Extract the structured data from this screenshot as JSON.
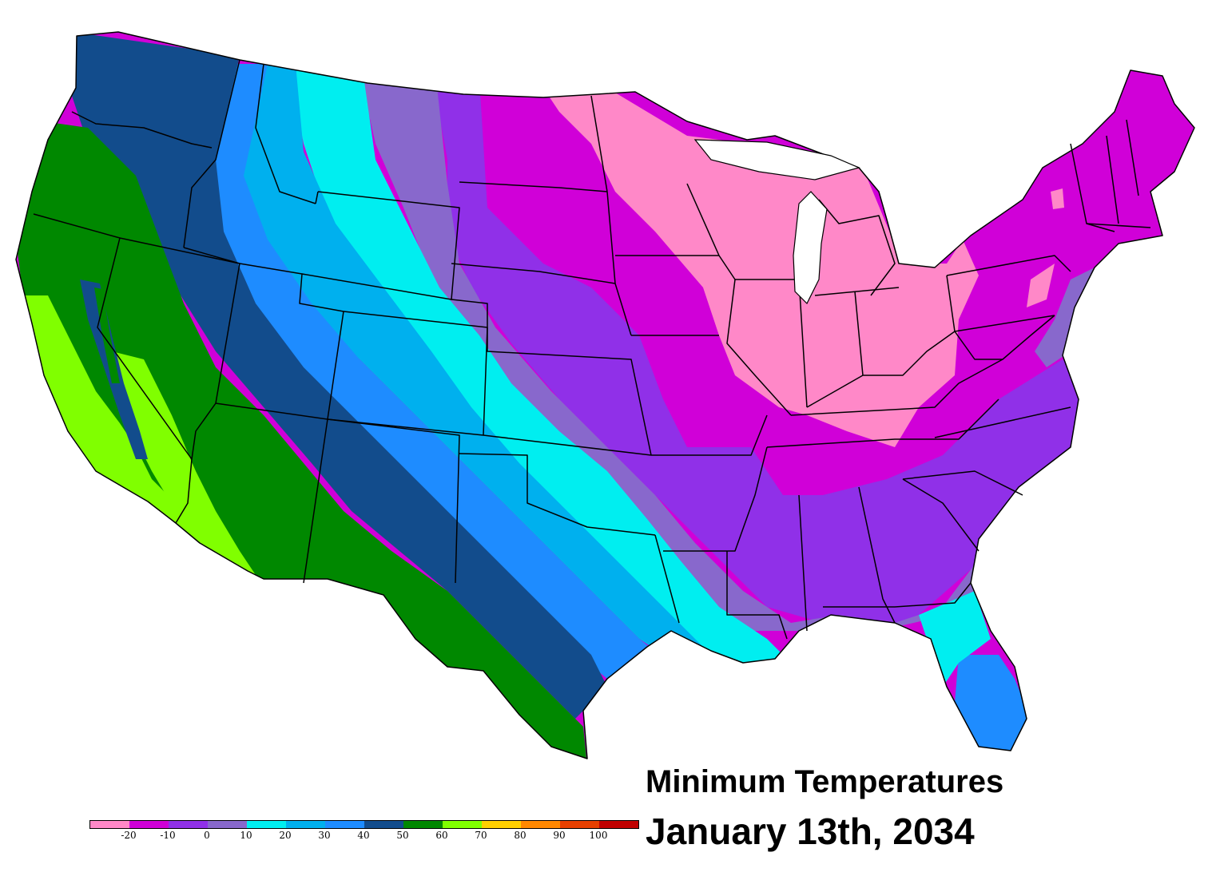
{
  "map": {
    "title": "Minimum Temperatures",
    "date": "January 13th, 2034",
    "region": "Contiguous United States"
  },
  "legend": {
    "colors": [
      "#ff88c8",
      "#d000d8",
      "#9030e8",
      "#8868cc",
      "#00eef0",
      "#00b0ee",
      "#1e8cff",
      "#124c8c",
      "#008800",
      "#80ff00",
      "#ffd000",
      "#ff8800",
      "#e84000",
      "#c00000"
    ],
    "bins": [
      "<-20",
      "-20 to -10",
      "-10 to 0",
      "0 to 10",
      "10 to 20",
      "20 to 30",
      "30 to 40",
      "40 to 50",
      "50 to 60",
      "60 to 70",
      "70 to 80",
      "80 to 90",
      "90 to 100",
      ">100"
    ],
    "labels": [
      "-20",
      "-10",
      "0",
      "10",
      "20",
      "30",
      "40",
      "50",
      "60",
      "70",
      "80",
      "90",
      "100"
    ]
  },
  "bands": [
    {
      "name": "west-coast-california",
      "color": "#80ff00",
      "range": "60 to 70"
    },
    {
      "name": "pacific-interior",
      "color": "#008800",
      "range": "50 to 60"
    },
    {
      "name": "northwest-rockies",
      "color": "#124c8c",
      "range": "40 to 50"
    },
    {
      "name": "front-range",
      "color": "#1e8cff",
      "range": "30 to 40"
    },
    {
      "name": "high-plains",
      "color": "#00b0ee",
      "range": "20 to 30"
    },
    {
      "name": "central-plains",
      "color": "#00eef0",
      "range": "10 to 20"
    },
    {
      "name": "northern-plains-south",
      "color": "#8868cc",
      "range": "0 to 10"
    },
    {
      "name": "dakotas-southeast",
      "color": "#9030e8",
      "range": "-10 to 0"
    },
    {
      "name": "upper-midwest-east",
      "color": "#d000d8",
      "range": "-20 to -10"
    },
    {
      "name": "great-lakes-core",
      "color": "#ff88c8",
      "range": "<-20"
    }
  ]
}
